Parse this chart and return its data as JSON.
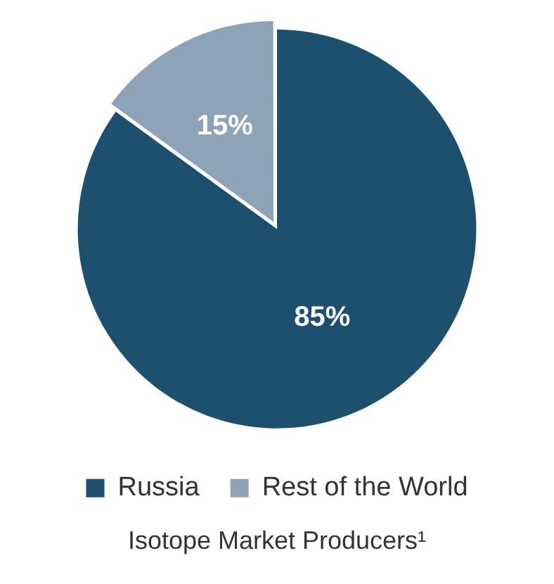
{
  "chart_data": {
    "type": "pie",
    "title": "Isotope Market Producers¹",
    "categories": [
      "Russia",
      "Rest of the World"
    ],
    "values": [
      85,
      15
    ],
    "colors": [
      "#1d4f6e",
      "#8ea3b6"
    ],
    "value_labels": [
      "85%",
      "15%"
    ],
    "legend": "bottom"
  }
}
